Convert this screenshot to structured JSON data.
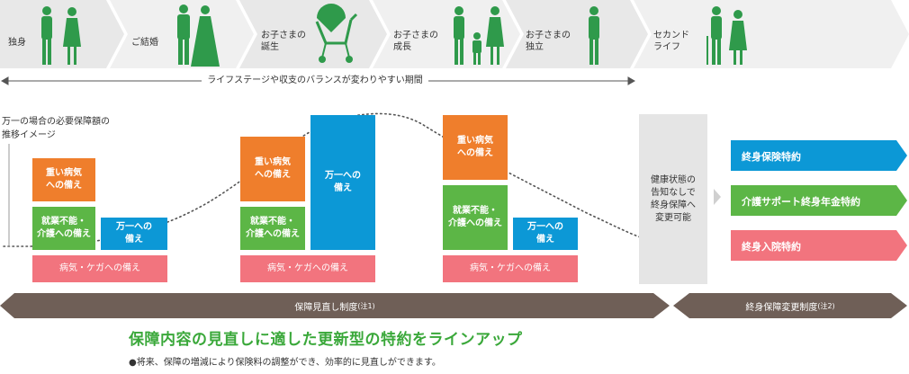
{
  "stages": [
    {
      "label": "独身",
      "icon": "single-person-icon"
    },
    {
      "label": "ご結婚",
      "icon": "couple-icon"
    },
    {
      "label": "お子さまの\n誕生",
      "icon": "stroller-icon"
    },
    {
      "label": "お子さまの\n成長",
      "icon": "family-icon"
    },
    {
      "label": "お子さまの\n独立",
      "icon": "single-person-icon"
    },
    {
      "label": "セカンド\nライフ",
      "icon": "elderly-couple-icon"
    }
  ],
  "period_label": "ライフステージや収支のバランスが変わりやすい期間",
  "trend_label": "万一の場合の必要保障額の\n推移イメージ",
  "groups": [
    {
      "illness": "重い病気\nへの備え",
      "disability": "就業不能・\n介護への備え",
      "death": "万一への\n備え",
      "base": "病気・ケガへの備え"
    },
    {
      "illness": "重い病気\nへの備え",
      "disability": "就業不能・\n介護への備え",
      "death": "万一への\n備え",
      "base": "病気・ケガへの備え"
    },
    {
      "illness": "重い病気\nへの備え",
      "disability": "就業不能・\n介護への備え",
      "death": "万一への\n備え",
      "base": "病気・ケガへの備え"
    }
  ],
  "gray_panel": "健康状態の\n告知なしで\n終身保障へ\n変更可能",
  "riders": [
    {
      "label": "終身保険特約",
      "color": "#0c98d6"
    },
    {
      "label": "介護サポート終身年金特約",
      "color": "#5cb646"
    },
    {
      "label": "終身入院特約",
      "color": "#f2747e"
    }
  ],
  "bars": [
    {
      "label": "保障見直し制度",
      "note": "(注1)"
    },
    {
      "label": "終身保障変更制度",
      "note": "(注2)"
    }
  ],
  "headline": "保障内容の見直しに適した更新型の特約をラインアップ",
  "subnote": "●将来、保障の増減により保険料の調整ができ、効率的に見直しができます。",
  "colors": {
    "orange": "#ef7e2c",
    "green": "#5cb646",
    "blue": "#0c98d6",
    "pink": "#f2747e",
    "icon_green": "#2f9a4b",
    "bar_dark": "#6f5f57",
    "headline_green": "#3aa83a"
  }
}
